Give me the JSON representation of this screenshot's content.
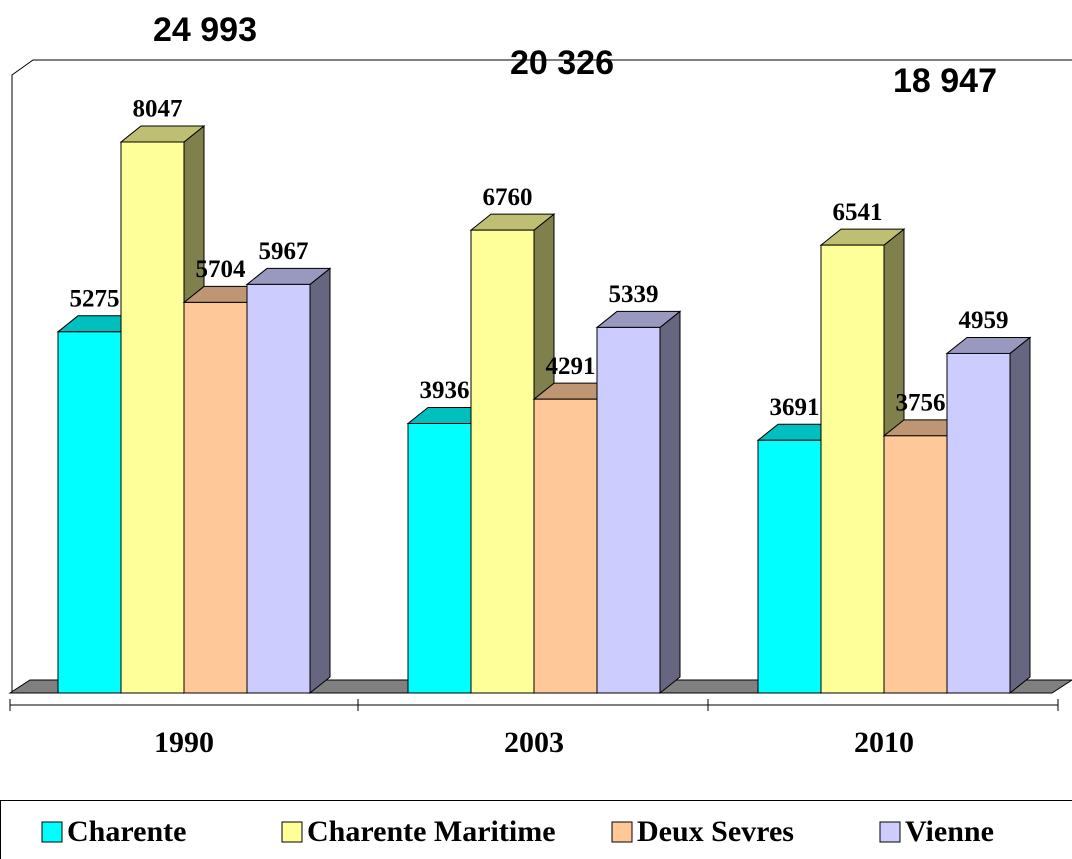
{
  "chart_data": {
    "type": "bar3d",
    "categories": [
      "1990",
      "2003",
      "2010"
    ],
    "series": [
      {
        "name": "Charente",
        "color": "#00ffff",
        "values": [
          5275,
          3936,
          3691
        ]
      },
      {
        "name": "Charente Maritime",
        "color": "#ffff99",
        "values": [
          8047,
          6760,
          6541
        ]
      },
      {
        "name": "Deux Sevres",
        "color": "#ffc899",
        "values": [
          5704,
          4291,
          3756
        ]
      },
      {
        "name": "Vienne",
        "color": "#ccccff",
        "values": [
          5967,
          5339,
          4959
        ]
      }
    ],
    "annotations": [
      "24 993",
      "20 326",
      "18 947"
    ],
    "legend": "bottom"
  }
}
